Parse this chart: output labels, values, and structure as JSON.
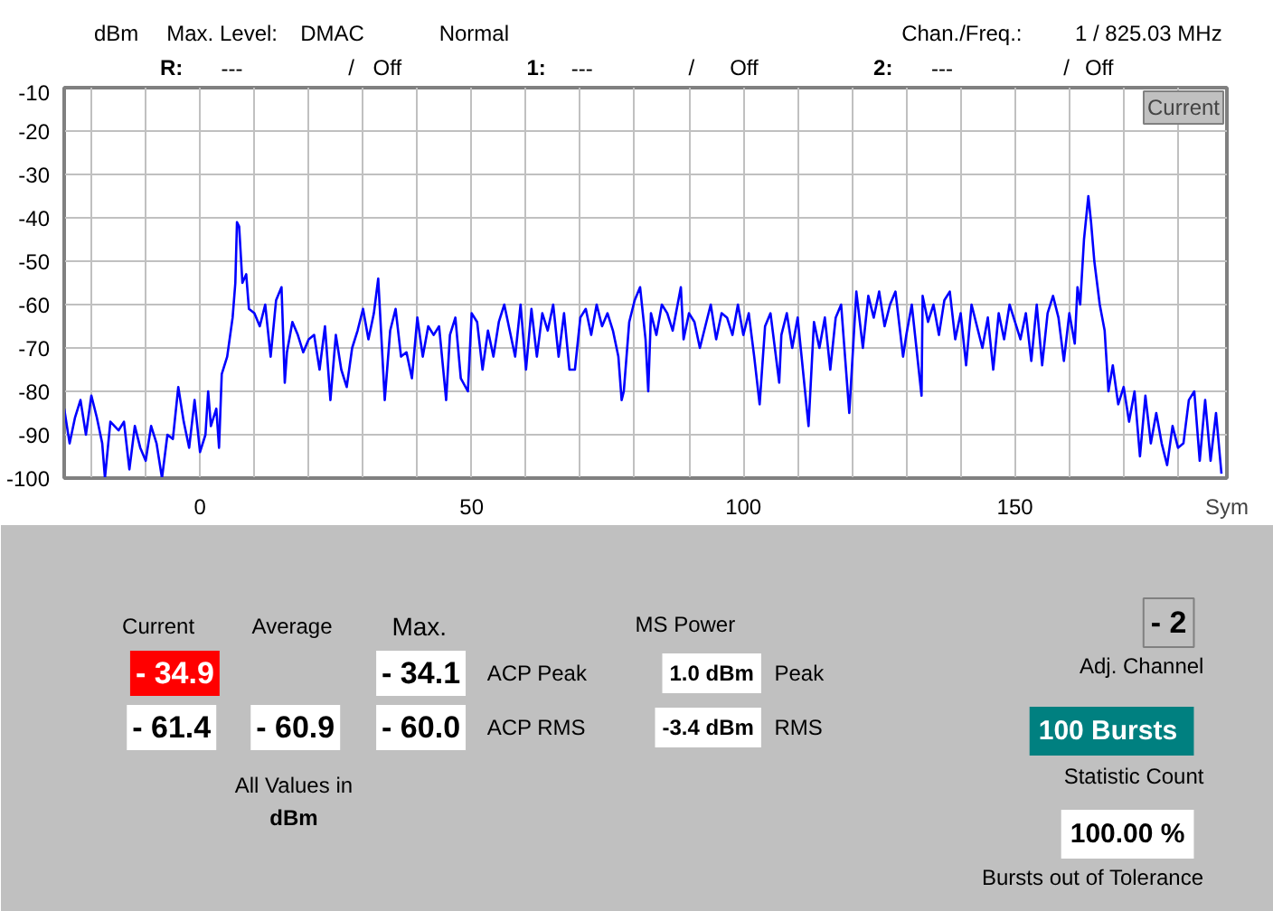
{
  "chart_data": {
    "type": "line",
    "ylabel": "dBm",
    "xlabel": "Sym",
    "grid": true,
    "marker": "none",
    "line_style": "solid",
    "xlim": [
      -25,
      189
    ],
    "ylim": [
      -100,
      -10
    ],
    "xticks": [
      {
        "value": -20,
        "label": null
      },
      {
        "value": -10,
        "label": null
      },
      0,
      {
        "value": 10,
        "label": null
      },
      {
        "value": 20,
        "label": null
      },
      {
        "value": 30,
        "label": null
      },
      {
        "value": 40,
        "label": null
      },
      50,
      {
        "value": 60,
        "label": null
      },
      {
        "value": 70,
        "label": null
      },
      {
        "value": 80,
        "label": null
      },
      {
        "value": 90,
        "label": null
      },
      100,
      {
        "value": 110,
        "label": null
      },
      {
        "value": 120,
        "label": null
      },
      {
        "value": 130,
        "label": null
      },
      {
        "value": 140,
        "label": null
      },
      150,
      {
        "value": 160,
        "label": null
      },
      {
        "value": 170,
        "label": null
      },
      {
        "value": 180,
        "label": null
      }
    ],
    "yticks": [
      -10,
      -20,
      -30,
      -40,
      -50,
      -60,
      -70,
      -80,
      -90,
      -100
    ],
    "series": [
      {
        "color": "#0000ff",
        "x": [
          -25,
          -24,
          -23,
          -22,
          -21,
          -20,
          -19,
          -18,
          -17.5,
          -16.5,
          -15,
          -14,
          -13,
          -12,
          -11,
          -10,
          -9,
          -8,
          -7,
          -6,
          -5,
          -4,
          -3,
          -2,
          -1,
          0,
          1,
          1.5,
          2,
          3,
          3.5,
          4,
          5,
          6,
          6.5,
          6.8,
          7.2,
          7.8,
          8.5,
          9,
          10,
          11,
          12,
          13,
          14,
          15,
          15.6,
          16,
          17,
          18,
          19,
          20,
          21,
          22,
          23,
          24,
          25,
          26,
          27,
          28,
          29,
          30,
          31,
          32,
          32.8,
          34,
          35,
          36,
          37,
          38,
          39,
          40,
          41,
          42,
          43,
          44,
          45.3,
          46,
          47,
          48,
          49.3,
          50,
          51,
          52,
          53,
          54,
          55,
          56,
          57,
          58,
          59,
          60,
          61,
          62,
          63,
          64,
          65,
          66,
          67,
          68,
          69,
          70,
          71,
          72,
          73,
          74,
          75,
          76,
          77,
          77.6,
          78,
          79,
          80,
          81,
          82,
          82.5,
          83,
          84,
          85,
          86,
          87,
          88.5,
          89,
          90,
          91,
          92,
          93,
          94,
          95,
          96,
          97,
          98,
          99,
          100,
          101,
          102,
          103,
          104,
          105,
          106.6,
          107,
          108,
          109,
          110,
          112,
          113,
          114,
          115,
          116,
          117,
          118,
          119.5,
          120.8,
          122,
          123,
          124,
          125,
          126,
          127,
          128,
          129.4,
          130,
          131,
          132.8,
          133,
          134,
          135,
          136,
          137,
          138,
          139,
          140,
          141,
          142,
          143,
          144,
          145,
          146,
          147,
          148,
          149,
          150,
          151,
          152,
          153,
          154,
          155,
          156,
          157,
          158,
          159,
          160,
          161,
          161.5,
          162,
          162.7,
          163.5,
          164,
          164.6,
          165.6,
          166.5,
          167.2,
          168,
          169,
          170,
          171,
          172,
          173,
          174,
          175,
          176,
          177,
          178,
          179,
          180,
          181,
          182,
          183,
          184,
          185,
          186,
          187,
          188
        ],
        "values": [
          -84,
          -92,
          -86,
          -82,
          -90,
          -81,
          -86,
          -92,
          -100,
          -87,
          -89,
          -87,
          -98,
          -88,
          -93,
          -96,
          -88,
          -92,
          -100,
          -90,
          -91,
          -79,
          -87,
          -93,
          -82,
          -94,
          -90,
          -80,
          -88,
          -84,
          -93,
          -76,
          -72,
          -63,
          -55,
          -41,
          -42,
          -55,
          -53,
          -61,
          -62,
          -65,
          -60,
          -72,
          -59,
          -56,
          -78,
          -71,
          -64,
          -67,
          -71,
          -68,
          -67,
          -75,
          -65,
          -82,
          -67,
          -75,
          -79,
          -70,
          -66,
          -61,
          -68,
          -62,
          -54,
          -82,
          -66,
          -61,
          -72,
          -71,
          -77,
          -63,
          -72,
          -65,
          -67,
          -65,
          -82,
          -67,
          -63,
          -77,
          -80,
          -62,
          -64,
          -75,
          -66,
          -72,
          -64,
          -60,
          -66,
          -72,
          -60,
          -75,
          -61,
          -72,
          -62,
          -66,
          -60,
          -72,
          -62,
          -75,
          -75,
          -63,
          -61,
          -67,
          -60,
          -65,
          -62,
          -66,
          -72,
          -82,
          -80,
          -64,
          -59,
          -56,
          -68,
          -80,
          -62,
          -67,
          -60,
          -62,
          -66,
          -56,
          -68,
          -62,
          -64,
          -70,
          -65,
          -60,
          -68,
          -62,
          -63,
          -67,
          -60,
          -67,
          -62,
          -72,
          -83,
          -65,
          -62,
          -78,
          -67,
          -62,
          -70,
          -63,
          -88,
          -64,
          -70,
          -63,
          -75,
          -63,
          -60,
          -85,
          -57,
          -70,
          -58,
          -63,
          -57,
          -65,
          -60,
          -57,
          -72,
          -67,
          -60,
          -81,
          -58,
          -64,
          -60,
          -67,
          -59,
          -57,
          -68,
          -62,
          -74,
          -60,
          -65,
          -70,
          -63,
          -75,
          -62,
          -68,
          -60,
          -64,
          -68,
          -62,
          -73,
          -60,
          -74,
          -62,
          -58,
          -63,
          -73,
          -62,
          -69,
          -56,
          -60,
          -45,
          -35,
          -41,
          -50,
          -60,
          -66,
          -80,
          -74,
          -83,
          -79,
          -87,
          -80,
          -95,
          -81,
          -92,
          -85,
          -92,
          -97,
          -88,
          -93,
          -92,
          -82,
          -80,
          -96,
          -82,
          -96,
          -85,
          -99
        ]
      }
    ],
    "annotations": [
      "Max. Level:",
      "DMAC",
      "Normal",
      "Chan./Freq.:",
      "1 / 825.03 MHz",
      "R:",
      "---",
      "/",
      "Off",
      "1:",
      "---",
      "/",
      "Off",
      "2:",
      "---",
      "/",
      "Off",
      "Current",
      "Current",
      "Average",
      "Max.",
      "- 34.9",
      "- 34.1",
      "ACP Peak",
      "- 61.4",
      "- 60.9",
      "- 60.0",
      "ACP RMS",
      "All Values in",
      "dBm",
      "MS Power",
      "1.0 dBm",
      "Peak",
      "-3.4 dBm",
      "RMS",
      "- 2",
      "Adj. Channel",
      "100  Bursts",
      "Statistic Count",
      "100.00 %",
      "Bursts out of Tolerance"
    ]
  }
}
